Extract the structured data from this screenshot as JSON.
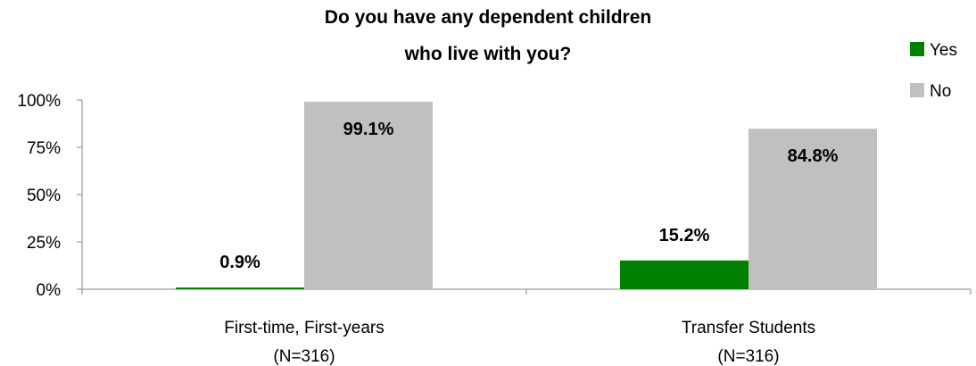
{
  "chart_data": {
    "type": "bar",
    "title_lines": [
      "Do you have any dependent children",
      "who live with you?"
    ],
    "categories": [
      {
        "line1": "First-time, First-years",
        "line2": "(N=316)"
      },
      {
        "line1": "Transfer Students",
        "line2": "(N=316)"
      }
    ],
    "series": [
      {
        "name": "Yes",
        "color": "#008000",
        "values": [
          0.9,
          15.2
        ],
        "labels": [
          "0.9%",
          "15.2%"
        ]
      },
      {
        "name": "No",
        "color": "#c0c0c0",
        "values": [
          99.1,
          84.8
        ],
        "labels": [
          "99.1%",
          "84.8%"
        ]
      }
    ],
    "ylim": [
      0,
      100
    ],
    "yticks": [
      {
        "value": 0,
        "label": "0%"
      },
      {
        "value": 25,
        "label": "25%"
      },
      {
        "value": 50,
        "label": "50%"
      },
      {
        "value": 75,
        "label": "75%"
      },
      {
        "value": 100,
        "label": "100%"
      }
    ],
    "grid": false,
    "legend_position": "top-right"
  }
}
